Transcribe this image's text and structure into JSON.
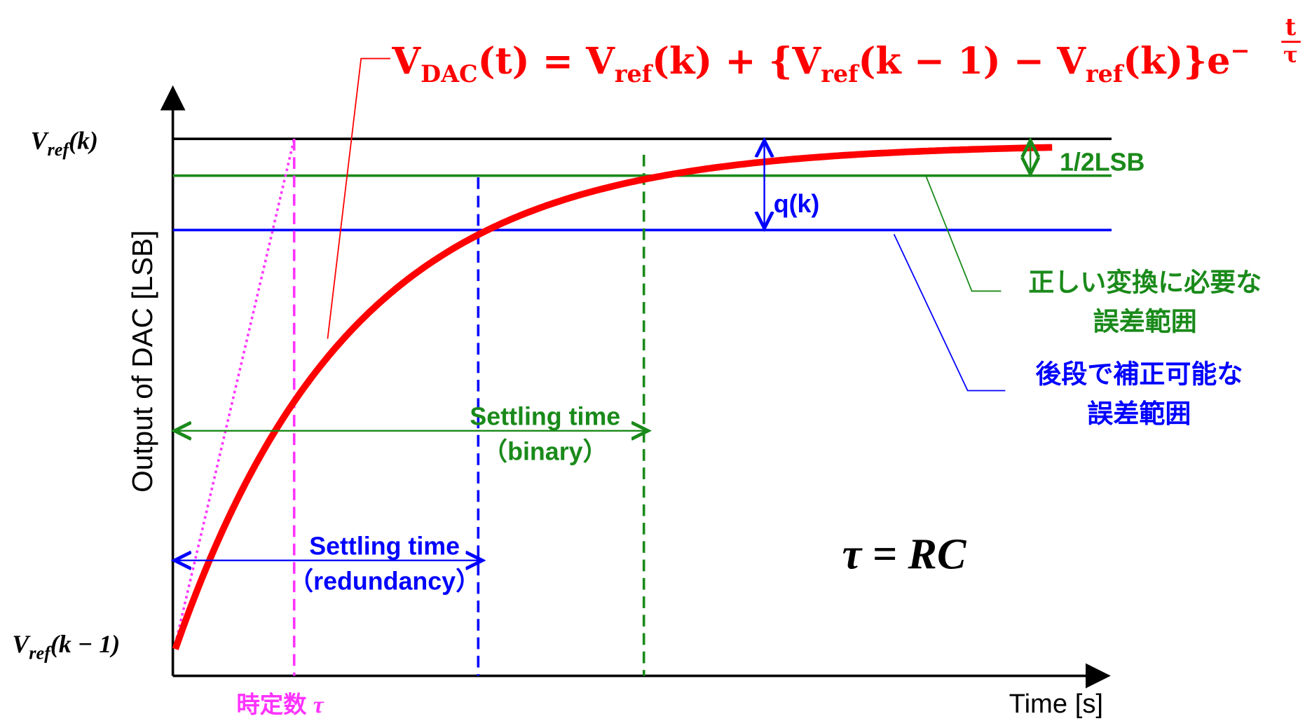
{
  "equation": {
    "v": "V",
    "dac": "DAC",
    "p1": "(t) = V",
    "ref1": "ref",
    "p2": "(k) + {V",
    "ref2": "ref",
    "p3": "(k − 1) − V",
    "ref3": "ref",
    "p4": "(k)}e",
    "minus": "−",
    "num": "t",
    "den": "τ"
  },
  "y_top_label": {
    "v": "V",
    "sub": "ref",
    "rest": "(k)"
  },
  "y_bottom_label": {
    "v": "V",
    "sub": "ref",
    "rest": "(k − 1)"
  },
  "y_axis_label": "Output of DAC [LSB]",
  "x_axis_label": "Time [s]",
  "half_lsb": "1/2LSB",
  "q_k": "q(k)",
  "green_note": [
    "正しい変換に必要な",
    "誤差範囲"
  ],
  "blue_note": [
    "後段で補正可能な",
    "誤差範囲"
  ],
  "settling_binary": [
    "Settling time",
    "（binary）"
  ],
  "settling_redundancy": [
    "Settling time",
    "（redundancy）"
  ],
  "time_constant": {
    "text": "時定数",
    "symbol": "τ"
  },
  "tau_eq": "τ = RC"
}
